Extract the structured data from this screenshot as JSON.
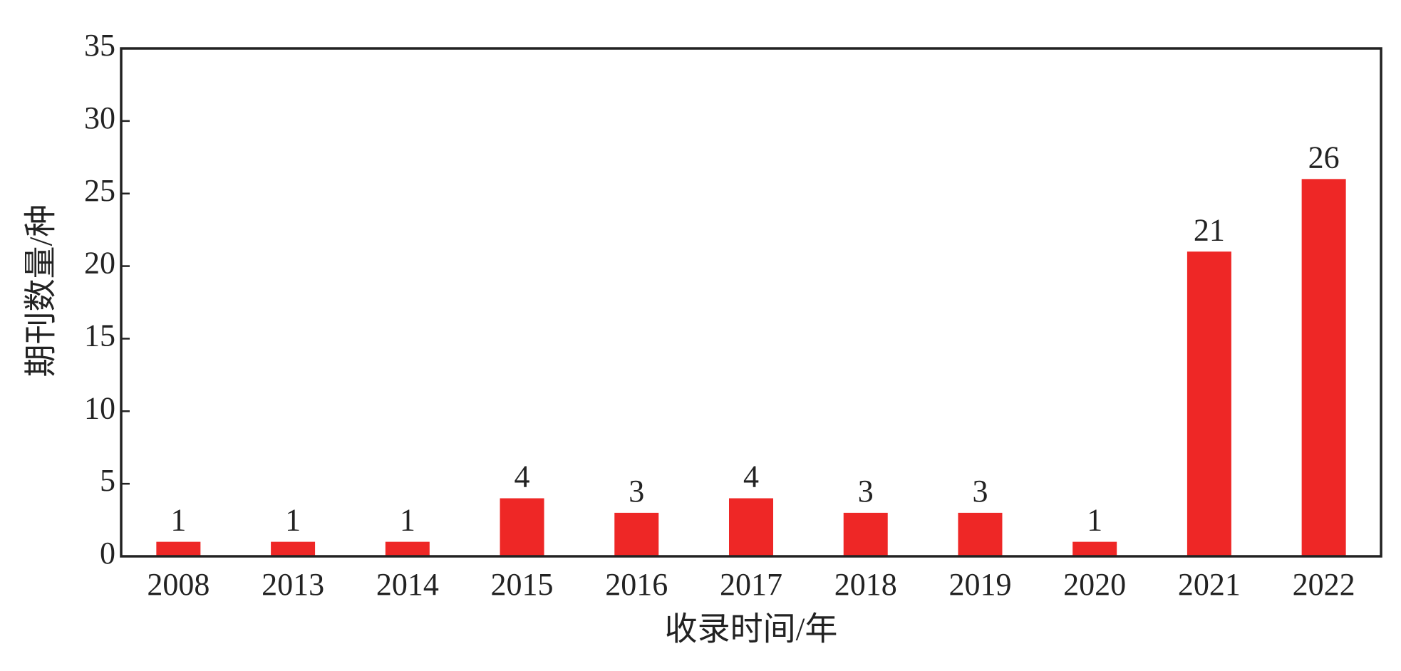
{
  "chart_data": {
    "type": "bar",
    "x_label": "收录时间/年",
    "y_label": "期刊数量/种",
    "categories": [
      "2008",
      "2013",
      "2014",
      "2015",
      "2016",
      "2017",
      "2018",
      "2019",
      "2020",
      "2021",
      "2022"
    ],
    "values": [
      1,
      1,
      1,
      4,
      3,
      4,
      3,
      3,
      1,
      21,
      26
    ],
    "color": "#ee2726",
    "ylim": [
      0,
      35
    ],
    "yticks": [
      0,
      5,
      10,
      15,
      20,
      25,
      30,
      35
    ],
    "data_labels": true
  }
}
